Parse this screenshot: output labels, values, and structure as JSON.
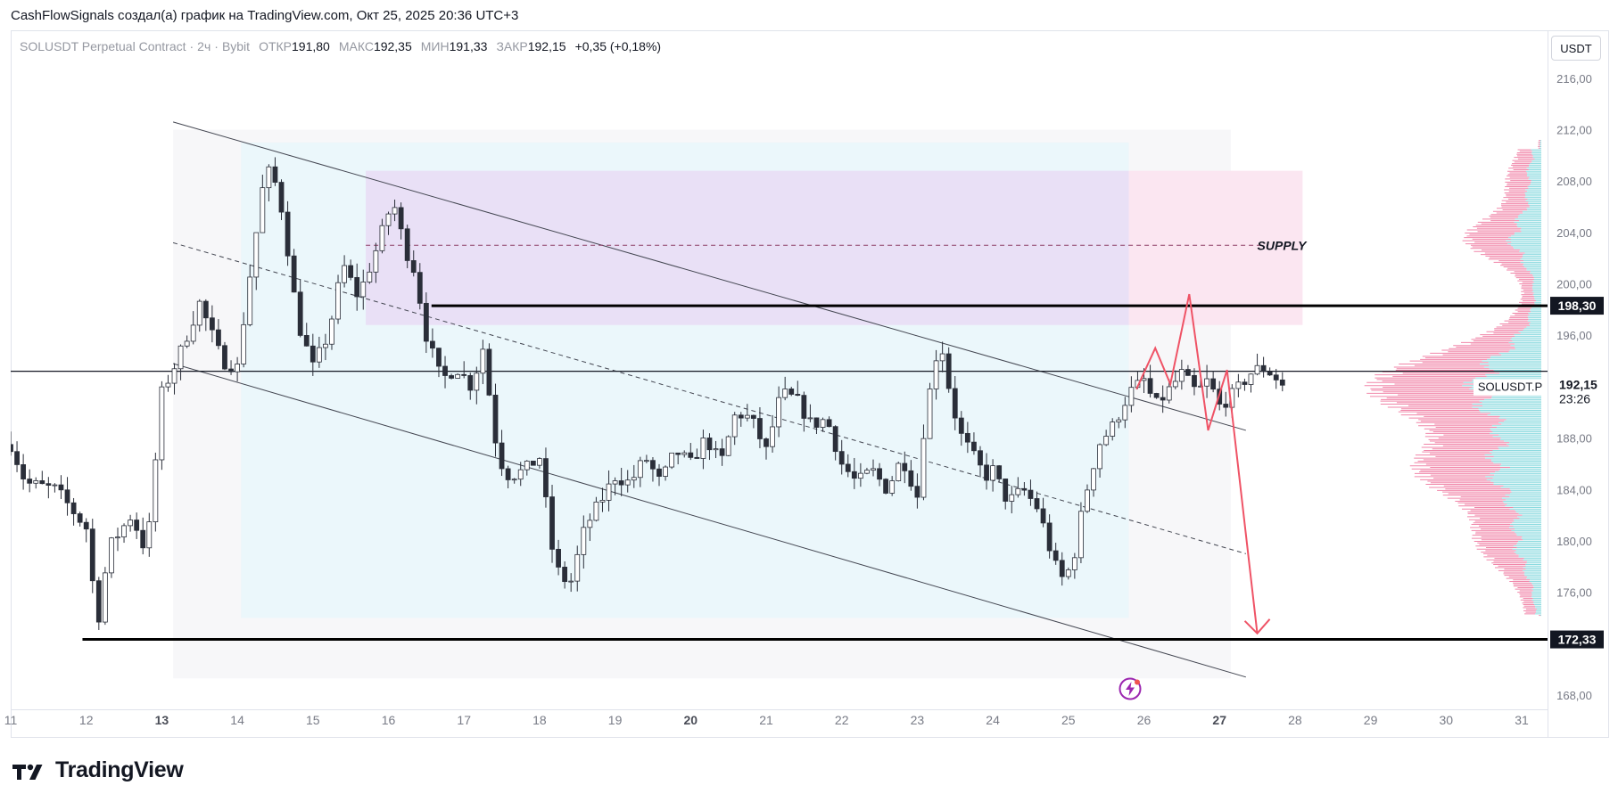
{
  "caption": "CashFlowSignals создал(а) график на TradingView.com, Окт 25, 2025 20:36 UTC+3",
  "legend": {
    "symbol": "SOLUSDT Perpetual Contract",
    "interval": "2ч",
    "exchange": "Bybit",
    "open_label": "ОТКР",
    "open_value": "191,80",
    "high_label": "МАКС",
    "high_value": "192,35",
    "low_label": "МИН",
    "low_value": "191,33",
    "close_label": "ЗАКР",
    "close_value": "192,15",
    "change": "+0,35 (+0,18%)"
  },
  "currency_button": "USDT",
  "brand": {
    "name": "TradingView"
  },
  "colors": {
    "bull": "#ffffff",
    "bear": "#2a2e39",
    "candle_outline": "#2a2e39",
    "supply_zone": "#e8d9f5",
    "supply_right": "#fbe3f0",
    "channel_box": "#e9f7fb",
    "profile_pink": "#ef7aa0",
    "profile_cyan": "#7fd6dc",
    "forecast": "#ef5366",
    "level_label_bg": "#131722"
  },
  "chart_data": {
    "type": "candlestick",
    "ylim": [
      166.8,
      217.8
    ],
    "xlim": [
      11.0,
      31.7
    ],
    "y_ticks": [
      "216,00",
      "212,00",
      "208,00",
      "204,00",
      "200,00",
      "196,00",
      "188,00",
      "184,00",
      "180,00",
      "176,00",
      "168,00"
    ],
    "x_ticks": [
      {
        "label": "11",
        "x": 11
      },
      {
        "label": "12",
        "x": 12
      },
      {
        "label": "13",
        "x": 13,
        "bold": true
      },
      {
        "label": "14",
        "x": 14
      },
      {
        "label": "15",
        "x": 15
      },
      {
        "label": "16",
        "x": 16
      },
      {
        "label": "17",
        "x": 17
      },
      {
        "label": "18",
        "x": 18
      },
      {
        "label": "19",
        "x": 19
      },
      {
        "label": "20",
        "x": 20,
        "bold": true
      },
      {
        "label": "21",
        "x": 21
      },
      {
        "label": "22",
        "x": 22
      },
      {
        "label": "23",
        "x": 23
      },
      {
        "label": "24",
        "x": 24
      },
      {
        "label": "25",
        "x": 25
      },
      {
        "label": "26",
        "x": 26
      },
      {
        "label": "27",
        "x": 27,
        "bold": true
      },
      {
        "label": "28",
        "x": 28
      },
      {
        "label": "29",
        "x": 29
      },
      {
        "label": "30",
        "x": 30
      },
      {
        "label": "31",
        "x": 31
      }
    ],
    "anchors": [
      {
        "x": 11.0,
        "c": 187.5
      },
      {
        "x": 11.2,
        "c": 184.5
      },
      {
        "x": 11.6,
        "c": 184.0
      },
      {
        "x": 12.0,
        "c": 181.0
      },
      {
        "x": 12.15,
        "c": 173.5
      },
      {
        "x": 12.3,
        "c": 179.5
      },
      {
        "x": 12.6,
        "c": 182.0
      },
      {
        "x": 12.8,
        "c": 179.0
      },
      {
        "x": 13.0,
        "c": 191.5
      },
      {
        "x": 13.2,
        "c": 194.0
      },
      {
        "x": 13.4,
        "c": 197.0
      },
      {
        "x": 13.5,
        "c": 198.5
      },
      {
        "x": 13.8,
        "c": 194.0
      },
      {
        "x": 14.0,
        "c": 193.5
      },
      {
        "x": 14.15,
        "c": 200.0
      },
      {
        "x": 14.35,
        "c": 208.0
      },
      {
        "x": 14.45,
        "c": 209.0
      },
      {
        "x": 14.6,
        "c": 205.5
      },
      {
        "x": 14.8,
        "c": 197.0
      },
      {
        "x": 15.0,
        "c": 193.5
      },
      {
        "x": 15.2,
        "c": 196.0
      },
      {
        "x": 15.4,
        "c": 201.5
      },
      {
        "x": 15.6,
        "c": 199.0
      },
      {
        "x": 15.8,
        "c": 202.0
      },
      {
        "x": 16.0,
        "c": 205.5
      },
      {
        "x": 16.1,
        "c": 206.0
      },
      {
        "x": 16.2,
        "c": 203.0
      },
      {
        "x": 16.35,
        "c": 201.0
      },
      {
        "x": 16.5,
        "c": 196.0
      },
      {
        "x": 16.7,
        "c": 192.5
      },
      {
        "x": 16.9,
        "c": 193.5
      },
      {
        "x": 17.1,
        "c": 192.0
      },
      {
        "x": 17.25,
        "c": 195.0
      },
      {
        "x": 17.45,
        "c": 186.5
      },
      {
        "x": 17.6,
        "c": 185.0
      },
      {
        "x": 17.8,
        "c": 185.5
      },
      {
        "x": 18.0,
        "c": 186.5
      },
      {
        "x": 18.2,
        "c": 178.0
      },
      {
        "x": 18.4,
        "c": 176.5
      },
      {
        "x": 18.6,
        "c": 181.0
      },
      {
        "x": 18.8,
        "c": 183.0
      },
      {
        "x": 19.0,
        "c": 185.0
      },
      {
        "x": 19.2,
        "c": 184.5
      },
      {
        "x": 19.4,
        "c": 186.5
      },
      {
        "x": 19.6,
        "c": 184.5
      },
      {
        "x": 19.8,
        "c": 187.0
      },
      {
        "x": 20.0,
        "c": 186.0
      },
      {
        "x": 20.2,
        "c": 188.0
      },
      {
        "x": 20.4,
        "c": 186.0
      },
      {
        "x": 20.6,
        "c": 190.0
      },
      {
        "x": 20.8,
        "c": 189.5
      },
      {
        "x": 21.0,
        "c": 187.0
      },
      {
        "x": 21.2,
        "c": 191.5
      },
      {
        "x": 21.4,
        "c": 191.0
      },
      {
        "x": 21.6,
        "c": 189.0
      },
      {
        "x": 21.8,
        "c": 189.5
      },
      {
        "x": 22.0,
        "c": 186.0
      },
      {
        "x": 22.2,
        "c": 184.5
      },
      {
        "x": 22.4,
        "c": 185.5
      },
      {
        "x": 22.6,
        "c": 184.0
      },
      {
        "x": 22.8,
        "c": 186.5
      },
      {
        "x": 23.0,
        "c": 183.5
      },
      {
        "x": 23.1,
        "c": 189.5
      },
      {
        "x": 23.3,
        "c": 196.0
      },
      {
        "x": 23.4,
        "c": 192.5
      },
      {
        "x": 23.55,
        "c": 188.5
      },
      {
        "x": 23.7,
        "c": 187.0
      },
      {
        "x": 23.9,
        "c": 185.0
      },
      {
        "x": 24.0,
        "c": 185.5
      },
      {
        "x": 24.2,
        "c": 183.0
      },
      {
        "x": 24.4,
        "c": 184.0
      },
      {
        "x": 24.6,
        "c": 182.5
      },
      {
        "x": 24.8,
        "c": 178.5
      },
      {
        "x": 24.9,
        "c": 177.0
      },
      {
        "x": 25.05,
        "c": 178.0
      },
      {
        "x": 25.2,
        "c": 183.0
      },
      {
        "x": 25.4,
        "c": 187.5
      },
      {
        "x": 25.6,
        "c": 189.0
      },
      {
        "x": 25.8,
        "c": 191.5
      },
      {
        "x": 26.0,
        "c": 192.5
      },
      {
        "x": 26.15,
        "c": 190.5
      },
      {
        "x": 26.3,
        "c": 191.5
      },
      {
        "x": 26.5,
        "c": 193.0
      },
      {
        "x": 26.7,
        "c": 191.5
      },
      {
        "x": 26.85,
        "c": 192.5
      },
      {
        "x": 27.0,
        "c": 190.5
      },
      {
        "x": 27.2,
        "c": 191.5
      },
      {
        "x": 27.4,
        "c": 193.0
      },
      {
        "x": 27.55,
        "c": 193.5
      },
      {
        "x": 27.7,
        "c": 193.0
      },
      {
        "x": 27.85,
        "c": 192.0
      },
      {
        "x": 28.0,
        "c": 192.15
      }
    ],
    "levels": [
      {
        "price": 198.3,
        "label": "198,30"
      },
      {
        "price": 172.33,
        "label": "172,33"
      }
    ],
    "last_price": {
      "price": 192.15,
      "symbol": "SOLUSDT.P",
      "value": "192,15",
      "countdown": "23:26"
    },
    "annotations": [
      {
        "text": "SUPPLY",
        "price": 203.0
      }
    ]
  }
}
